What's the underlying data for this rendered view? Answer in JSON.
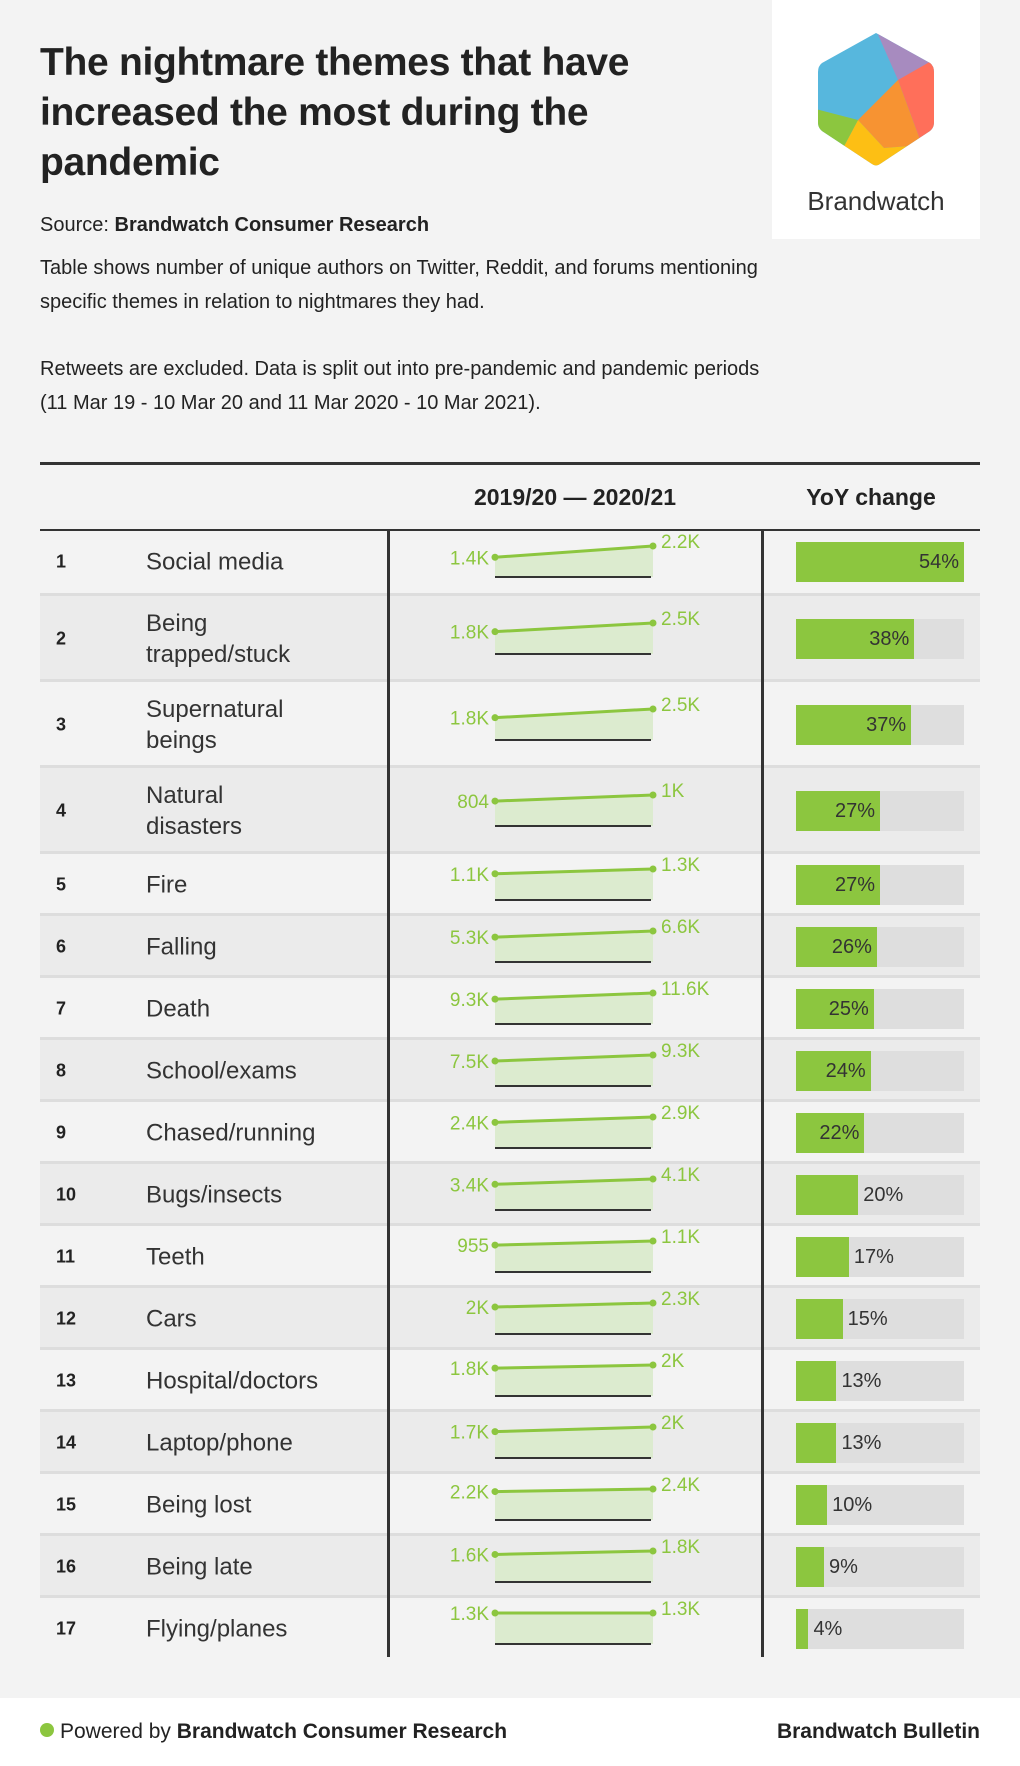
{
  "title": "The nightmare themes that have increased the most during the pandemic",
  "source_label": "Source:",
  "source_name": "Brandwatch Consumer Research",
  "description1": "Table shows number of unique authors on Twitter, Reddit, and forums mentioning specific themes in relation to nightmares they had.",
  "description2": "Retweets are excluded. Data is split out into pre-pandemic and pandemic periods (11 Mar 19 - 10 Mar 20 and 11 Mar 2020 - 10 Mar 2021).",
  "logo": {
    "text": "Brandwatch"
  },
  "colors": {
    "accent": "#8cc63f",
    "fill": "#dcebcf",
    "bar_bg": "#dedede"
  },
  "footer": {
    "powered_by": "Powered by",
    "powered_name": "Brandwatch Consumer Research",
    "right": "Brandwatch Bulletin"
  },
  "chart_data": {
    "type": "table",
    "columns": [
      "",
      "",
      "2019/20 — 2020/21",
      "YoY change"
    ],
    "rows": [
      {
        "rank": "1",
        "theme": "Social media",
        "v1": "1.4K",
        "v2": "2.2K",
        "yoy": 54
      },
      {
        "rank": "2",
        "theme": "Being\ntrapped/stuck",
        "v1": "1.8K",
        "v2": "2.5K",
        "yoy": 38
      },
      {
        "rank": "3",
        "theme": "Supernatural\nbeings",
        "v1": "1.8K",
        "v2": "2.5K",
        "yoy": 37
      },
      {
        "rank": "4",
        "theme": "Natural\ndisasters",
        "v1": "804",
        "v2": "1K",
        "yoy": 27
      },
      {
        "rank": "5",
        "theme": "Fire",
        "v1": "1.1K",
        "v2": "1.3K",
        "yoy": 27
      },
      {
        "rank": "6",
        "theme": "Falling",
        "v1": "5.3K",
        "v2": "6.6K",
        "yoy": 26
      },
      {
        "rank": "7",
        "theme": "Death",
        "v1": "9.3K",
        "v2": "11.6K",
        "yoy": 25
      },
      {
        "rank": "8",
        "theme": "School/exams",
        "v1": "7.5K",
        "v2": "9.3K",
        "yoy": 24
      },
      {
        "rank": "9",
        "theme": "Chased/running",
        "v1": "2.4K",
        "v2": "2.9K",
        "yoy": 22
      },
      {
        "rank": "10",
        "theme": "Bugs/insects",
        "v1": "3.4K",
        "v2": "4.1K",
        "yoy": 20
      },
      {
        "rank": "11",
        "theme": "Teeth",
        "v1": "955",
        "v2": "1.1K",
        "yoy": 17
      },
      {
        "rank": "12",
        "theme": "Cars",
        "v1": "2K",
        "v2": "2.3K",
        "yoy": 15
      },
      {
        "rank": "13",
        "theme": "Hospital/doctors",
        "v1": "1.8K",
        "v2": "2K",
        "yoy": 13
      },
      {
        "rank": "14",
        "theme": "Laptop/phone",
        "v1": "1.7K",
        "v2": "2K",
        "yoy": 13
      },
      {
        "rank": "15",
        "theme": "Being lost",
        "v1": "2.2K",
        "v2": "2.4K",
        "yoy": 10
      },
      {
        "rank": "16",
        "theme": "Being late",
        "v1": "1.6K",
        "v2": "1.8K",
        "yoy": 9
      },
      {
        "rank": "17",
        "theme": "Flying/planes",
        "v1": "1.3K",
        "v2": "1.3K",
        "yoy": 4
      }
    ]
  }
}
